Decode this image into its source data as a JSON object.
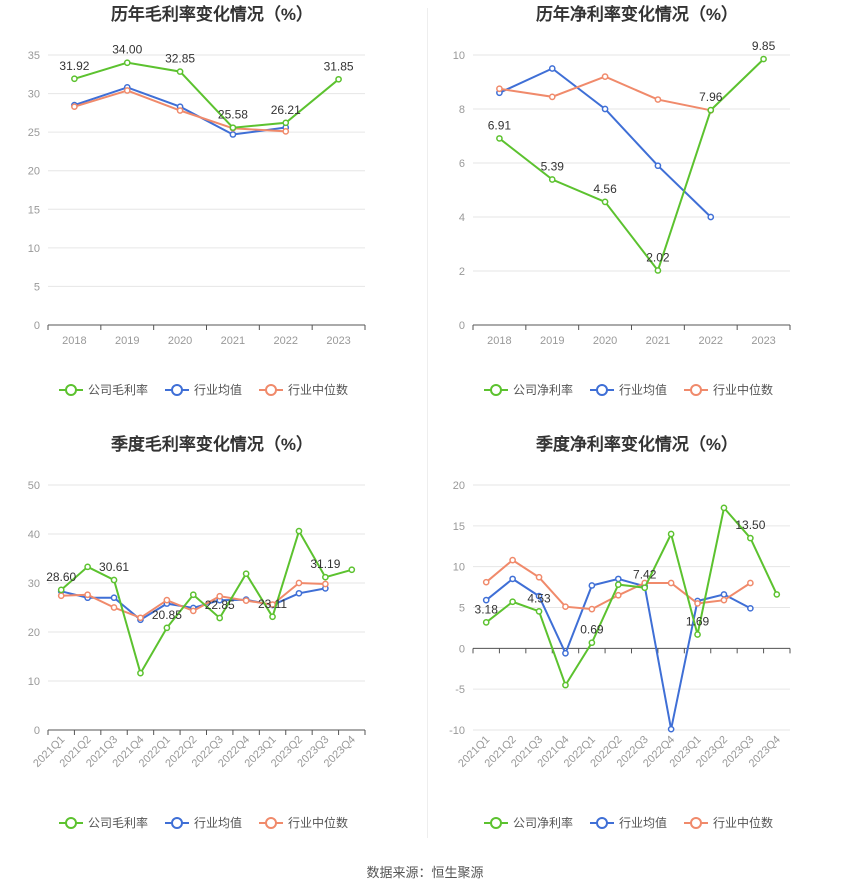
{
  "colors": {
    "company": "#5cc22f",
    "industry_avg": "#3f6fd6",
    "industry_median": "#f08a6b",
    "grid": "#e6e6e6",
    "axis_text": "#999999",
    "title": "#333333"
  },
  "source": "数据来源：恒生聚源",
  "chart_data": [
    {
      "type": "line",
      "title": "历年毛利率变化情况（%）",
      "x": [
        "2018",
        "2019",
        "2020",
        "2021",
        "2022",
        "2023"
      ],
      "ylim": [
        0,
        35
      ],
      "yticks": [
        0,
        5,
        10,
        15,
        20,
        25,
        30,
        35
      ],
      "xlabel_rotate": false,
      "legend_position": "bottom",
      "series": [
        {
          "name": "公司毛利率",
          "role": "company",
          "values": [
            31.92,
            34.0,
            32.85,
            25.58,
            26.21,
            31.85
          ],
          "labels": [
            "31.92",
            "34.00",
            "32.85",
            "25.58",
            "26.21",
            "31.85"
          ]
        },
        {
          "name": "行业均值",
          "role": "industry_avg",
          "values": [
            28.5,
            30.8,
            28.3,
            24.7,
            25.6,
            null
          ]
        },
        {
          "name": "行业中位数",
          "role": "industry_median",
          "values": [
            28.3,
            30.4,
            27.8,
            25.5,
            25.1,
            null
          ]
        }
      ]
    },
    {
      "type": "line",
      "title": "历年净利率变化情况（%）",
      "x": [
        "2018",
        "2019",
        "2020",
        "2021",
        "2022",
        "2023"
      ],
      "ylim": [
        0,
        10
      ],
      "yticks": [
        0,
        2,
        4,
        6,
        8,
        10
      ],
      "xlabel_rotate": false,
      "legend_position": "bottom",
      "series": [
        {
          "name": "公司净利率",
          "role": "company",
          "values": [
            6.91,
            5.39,
            4.56,
            2.02,
            7.96,
            9.85
          ],
          "labels": [
            "6.91",
            "5.39",
            "4.56",
            "2.02",
            "7.96",
            "9.85"
          ]
        },
        {
          "name": "行业均值",
          "role": "industry_avg",
          "values": [
            8.6,
            9.5,
            8.0,
            5.9,
            4.0,
            null
          ]
        },
        {
          "name": "行业中位数",
          "role": "industry_median",
          "values": [
            8.75,
            8.45,
            9.2,
            8.35,
            7.95,
            null
          ]
        }
      ]
    },
    {
      "type": "line",
      "title": "季度毛利率变化情况（%）",
      "x": [
        "2021Q1",
        "2021Q2",
        "2021Q3",
        "2021Q4",
        "2022Q1",
        "2022Q2",
        "2022Q3",
        "2022Q4",
        "2023Q1",
        "2023Q2",
        "2023Q3",
        "2023Q4"
      ],
      "ylim": [
        0,
        50
      ],
      "yticks": [
        0,
        10,
        20,
        30,
        40,
        50
      ],
      "xlabel_rotate": true,
      "legend_position": "bottom",
      "series": [
        {
          "name": "公司毛利率",
          "role": "company",
          "values": [
            28.6,
            33.3,
            30.61,
            11.6,
            20.85,
            27.6,
            22.85,
            31.9,
            23.11,
            40.6,
            31.19,
            32.7
          ],
          "labels": [
            "28.60",
            null,
            "30.61",
            null,
            "20.85",
            null,
            "22.85",
            null,
            "23.11",
            null,
            "31.19",
            null
          ]
        },
        {
          "name": "行业均值",
          "role": "industry_avg",
          "values": [
            28.3,
            27.0,
            27.0,
            22.5,
            25.8,
            24.9,
            26.5,
            26.6,
            25.5,
            27.9,
            28.9,
            null
          ]
        },
        {
          "name": "行业中位数",
          "role": "industry_median",
          "values": [
            27.4,
            27.6,
            25.0,
            22.9,
            26.5,
            24.3,
            27.3,
            26.4,
            25.6,
            30.0,
            29.8,
            null
          ]
        }
      ]
    },
    {
      "type": "line",
      "title": "季度净利率变化情况（%）",
      "x": [
        "2021Q1",
        "2021Q2",
        "2021Q3",
        "2021Q4",
        "2022Q1",
        "2022Q2",
        "2022Q3",
        "2022Q4",
        "2023Q1",
        "2023Q2",
        "2023Q3",
        "2023Q4"
      ],
      "ylim": [
        -10,
        20
      ],
      "yticks": [
        -10,
        -5,
        0,
        5,
        10,
        15,
        20
      ],
      "xlabel_rotate": true,
      "legend_position": "bottom",
      "series": [
        {
          "name": "公司净利率",
          "role": "company",
          "values": [
            3.18,
            5.7,
            4.53,
            -4.5,
            0.69,
            7.8,
            7.42,
            14.0,
            1.69,
            17.2,
            13.5,
            6.6
          ],
          "labels": [
            "3.18",
            null,
            "4.53",
            null,
            "0.69",
            null,
            "7.42",
            null,
            "1.69",
            null,
            "13.50",
            null
          ]
        },
        {
          "name": "行业均值",
          "role": "industry_avg",
          "values": [
            5.9,
            8.5,
            6.4,
            -0.6,
            7.7,
            8.5,
            7.6,
            -9.9,
            5.8,
            6.6,
            4.9,
            null
          ]
        },
        {
          "name": "行业中位数",
          "role": "industry_median",
          "values": [
            8.1,
            10.8,
            8.7,
            5.1,
            4.8,
            6.5,
            8.0,
            8.0,
            5.5,
            5.9,
            8.0,
            null
          ]
        }
      ]
    }
  ]
}
